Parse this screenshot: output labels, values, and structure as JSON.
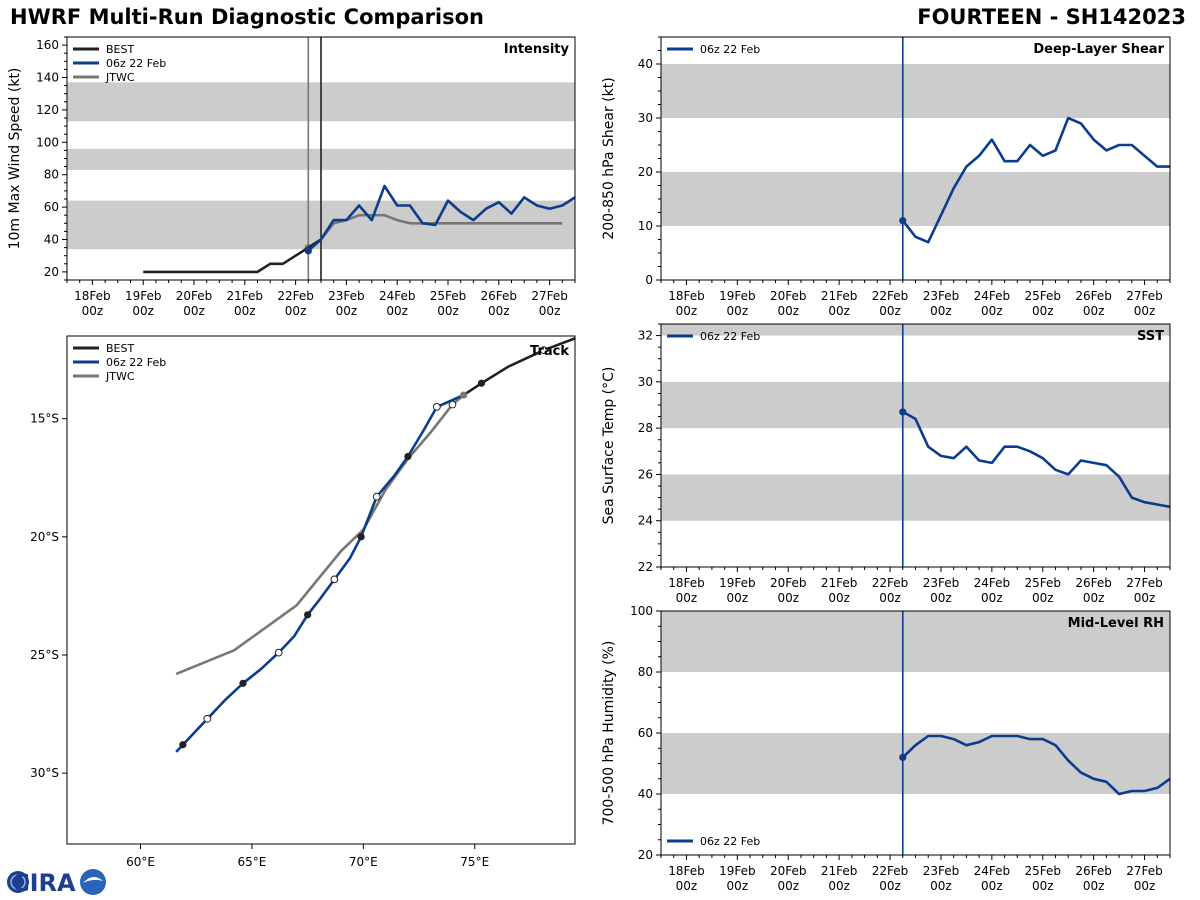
{
  "header": {
    "title": "HWRF Multi-Run Diagnostic Comparison",
    "storm": "FOURTEEN - SH142023"
  },
  "logo": {
    "text": "CIRA"
  },
  "colors": {
    "best": "#222222",
    "hwrf": "#0b3d8c",
    "jtwc": "#777777",
    "band": "#cccccc"
  },
  "time_axis": {
    "ticks": [
      {
        "day": 18,
        "top": "18Feb",
        "bottom": "00z"
      },
      {
        "day": 19,
        "top": "19Feb",
        "bottom": "00z"
      },
      {
        "day": 20,
        "top": "20Feb",
        "bottom": "00z"
      },
      {
        "day": 21,
        "top": "21Feb",
        "bottom": "00z"
      },
      {
        "day": 22,
        "top": "22Feb",
        "bottom": "00z"
      },
      {
        "day": 23,
        "top": "23Feb",
        "bottom": "00z"
      },
      {
        "day": 24,
        "top": "24Feb",
        "bottom": "00z"
      },
      {
        "day": 25,
        "top": "25Feb",
        "bottom": "00z"
      },
      {
        "day": 26,
        "top": "26Feb",
        "bottom": "00z"
      },
      {
        "day": 27,
        "top": "27Feb",
        "bottom": "00z"
      }
    ]
  },
  "chart_data": [
    {
      "id": "intensity",
      "type": "line",
      "title": "Intensity",
      "ylabel": "10m Max Wind Speed (kt)",
      "xlim": [
        17.5,
        27.5
      ],
      "ylim": [
        15,
        165
      ],
      "yticks": [
        20,
        40,
        60,
        80,
        100,
        120,
        140,
        160
      ],
      "bands": [
        [
          34,
          64
        ],
        [
          83,
          96
        ],
        [
          113,
          137
        ]
      ],
      "vlines": [
        {
          "x": 22.25,
          "series": "jtwc"
        },
        {
          "x": 22.5,
          "series": "best"
        }
      ],
      "legend": [
        {
          "label": "BEST",
          "series": "best"
        },
        {
          "label": "06z 22 Feb",
          "series": "hwrf"
        },
        {
          "label": "JTWC",
          "series": "jtwc"
        }
      ],
      "series": [
        {
          "name": "BEST",
          "key": "best",
          "x": [
            19,
            19.25,
            19.5,
            19.75,
            20,
            20.25,
            20.5,
            20.75,
            21,
            21.25,
            21.5,
            21.75,
            22,
            22.25,
            22.5
          ],
          "y": [
            20,
            20,
            20,
            20,
            20,
            20,
            20,
            20,
            20,
            20,
            25,
            25,
            30,
            35,
            40
          ]
        },
        {
          "name": "06z 22 Feb",
          "key": "hwrf",
          "x": [
            22.25,
            22.5,
            22.75,
            23,
            23.25,
            23.5,
            23.75,
            24,
            24.25,
            24.5,
            24.75,
            25,
            25.25,
            25.5,
            25.75,
            26,
            26.25,
            26.5,
            26.75,
            27,
            27.25,
            27.5
          ],
          "y": [
            33,
            40,
            52,
            52,
            61,
            52,
            73,
            61,
            61,
            50,
            49,
            64,
            57,
            52,
            59,
            63,
            56,
            66,
            61,
            59,
            61,
            66
          ],
          "start_marker": true
        },
        {
          "name": "JTWC",
          "key": "jtwc",
          "x": [
            22.25,
            22.5,
            22.75,
            23,
            23.25,
            23.5,
            23.75,
            24,
            24.25,
            24.5,
            24.75,
            25,
            25.5,
            26,
            26.5,
            27,
            27.25
          ],
          "y": [
            35,
            40,
            50,
            52,
            55,
            55,
            55,
            52,
            50,
            50,
            50,
            50,
            50,
            50,
            50,
            50,
            50
          ],
          "start_marker": true
        }
      ]
    },
    {
      "id": "track",
      "type": "line",
      "title": "Track",
      "xlim": [
        56.7,
        79.5
      ],
      "ylim": [
        -33,
        -11.5
      ],
      "xticks": [
        {
          "v": 60,
          "label": "60°E"
        },
        {
          "v": 65,
          "label": "65°E"
        },
        {
          "v": 70,
          "label": "70°E"
        },
        {
          "v": 75,
          "label": "75°E"
        }
      ],
      "yticks": [
        {
          "v": -15,
          "label": "15°S"
        },
        {
          "v": -20,
          "label": "20°S"
        },
        {
          "v": -25,
          "label": "25°S"
        },
        {
          "v": -30,
          "label": "30°S"
        }
      ],
      "legend": [
        {
          "label": "BEST",
          "series": "best"
        },
        {
          "label": "06z 22 Feb",
          "series": "hwrf"
        },
        {
          "label": "JTWC",
          "series": "jtwc"
        }
      ],
      "series": [
        {
          "name": "BEST",
          "key": "best",
          "lon": [
            74.5,
            75.3,
            76.5,
            78.1,
            79.5
          ],
          "lat": [
            -14.0,
            -13.5,
            -12.8,
            -12.1,
            -11.6
          ],
          "open_markers": [
            [
              78.1,
              -12.1
            ]
          ],
          "filled_markers": [
            [
              75.3,
              -13.5
            ]
          ]
        },
        {
          "name": "06z 22 Feb",
          "key": "hwrf",
          "lon": [
            74.5,
            73.3,
            72.7,
            72.0,
            71.4,
            70.6,
            69.9,
            69.4,
            68.7,
            68.0,
            67.5,
            66.9,
            66.2,
            65.4,
            64.6,
            63.8,
            63.0,
            62.5,
            61.9,
            61.6
          ],
          "lat": [
            -14.0,
            -14.5,
            -15.5,
            -16.6,
            -17.4,
            -18.3,
            -20.0,
            -20.9,
            -21.8,
            -22.7,
            -23.3,
            -24.2,
            -24.9,
            -25.6,
            -26.2,
            -26.9,
            -27.7,
            -28.2,
            -28.8,
            -29.1
          ],
          "open_markers": [
            [
              73.3,
              -14.5
            ],
            [
              70.6,
              -18.3
            ],
            [
              68.7,
              -21.8
            ],
            [
              66.2,
              -24.9
            ],
            [
              63.0,
              -27.7
            ]
          ],
          "filled_markers": [
            [
              72.0,
              -16.6
            ],
            [
              69.9,
              -20.0
            ],
            [
              67.5,
              -23.3
            ],
            [
              64.6,
              -26.2
            ],
            [
              61.9,
              -28.8
            ]
          ]
        },
        {
          "name": "JTWC",
          "key": "jtwc",
          "lon": [
            74.5,
            74.0,
            73.0,
            72.0,
            71.0,
            70.0,
            69.0,
            67.0,
            64.2,
            61.6
          ],
          "lat": [
            -14.0,
            -14.4,
            -15.6,
            -16.7,
            -18.0,
            -19.7,
            -20.6,
            -22.9,
            -24.8,
            -25.8
          ],
          "open_markers": [
            [
              74.0,
              -14.4
            ]
          ],
          "filled_markers": [
            [
              74.5,
              -14.0
            ]
          ]
        }
      ]
    },
    {
      "id": "shear",
      "type": "line",
      "title": "Deep-Layer Shear",
      "ylabel": "200-850 hPa Shear (kt)",
      "xlim": [
        17.5,
        27.5
      ],
      "ylim": [
        0,
        45
      ],
      "yticks": [
        0,
        10,
        20,
        30,
        40
      ],
      "bands": [
        [
          10,
          20
        ],
        [
          30,
          40
        ]
      ],
      "vlines": [
        {
          "x": 22.25,
          "series": "hwrf"
        }
      ],
      "legend": [
        {
          "label": "06z 22 Feb",
          "series": "hwrf"
        }
      ],
      "series": [
        {
          "name": "06z 22 Feb",
          "key": "hwrf",
          "x": [
            22.25,
            22.5,
            22.75,
            23,
            23.25,
            23.5,
            23.75,
            24,
            24.25,
            24.5,
            24.75,
            25,
            25.25,
            25.5,
            25.75,
            26,
            26.25,
            26.5,
            26.75,
            27,
            27.25,
            27.5
          ],
          "y": [
            11,
            8,
            7,
            12,
            17,
            21,
            23,
            26,
            22,
            22,
            25,
            23,
            24,
            30,
            29,
            26,
            24,
            25,
            25,
            23,
            21,
            21
          ],
          "start_marker": true
        }
      ]
    },
    {
      "id": "sst",
      "type": "line",
      "title": "SST",
      "ylabel": "Sea Surface Temp (°C)",
      "xlim": [
        17.5,
        27.5
      ],
      "ylim": [
        22,
        32.5
      ],
      "yticks": [
        22,
        24,
        26,
        28,
        30,
        32
      ],
      "bands": [
        [
          24,
          26
        ],
        [
          28,
          30
        ],
        [
          32,
          32.5
        ]
      ],
      "vlines": [
        {
          "x": 22.25,
          "series": "hwrf"
        }
      ],
      "legend": [
        {
          "label": "06z 22 Feb",
          "series": "hwrf"
        }
      ],
      "series": [
        {
          "name": "06z 22 Feb",
          "key": "hwrf",
          "x": [
            22.25,
            22.5,
            22.75,
            23,
            23.25,
            23.5,
            23.75,
            24,
            24.25,
            24.5,
            24.75,
            25,
            25.25,
            25.5,
            25.75,
            26,
            26.25,
            26.5,
            26.75,
            27,
            27.25,
            27.5
          ],
          "y": [
            28.7,
            28.4,
            27.2,
            26.8,
            26.7,
            27.2,
            26.6,
            26.5,
            27.2,
            27.2,
            27.0,
            26.7,
            26.2,
            26.0,
            26.6,
            26.5,
            26.4,
            25.9,
            25.0,
            24.8,
            24.7,
            24.6
          ],
          "start_marker": true
        }
      ]
    },
    {
      "id": "rh",
      "type": "line",
      "title": "Mid-Level RH",
      "ylabel": "700-500 hPa Humidity (%)",
      "xlim": [
        17.5,
        27.5
      ],
      "ylim": [
        20,
        100
      ],
      "yticks": [
        20,
        40,
        60,
        80,
        100
      ],
      "bands": [
        [
          40,
          60
        ],
        [
          80,
          100
        ]
      ],
      "vlines": [
        {
          "x": 22.25,
          "series": "hwrf"
        }
      ],
      "legend": [
        {
          "label": "06z 22 Feb",
          "series": "hwrf"
        }
      ],
      "series": [
        {
          "name": "06z 22 Feb",
          "key": "hwrf",
          "x": [
            22.25,
            22.5,
            22.75,
            23,
            23.25,
            23.5,
            23.75,
            24,
            24.25,
            24.5,
            24.75,
            25,
            25.25,
            25.5,
            25.75,
            26,
            26.25,
            26.5,
            26.75,
            27,
            27.25,
            27.5
          ],
          "y": [
            52,
            56,
            59,
            59,
            58,
            56,
            57,
            59,
            59,
            59,
            58,
            58,
            56,
            51,
            47,
            45,
            44,
            40,
            41,
            41,
            42,
            45
          ],
          "start_marker": true
        }
      ]
    }
  ]
}
